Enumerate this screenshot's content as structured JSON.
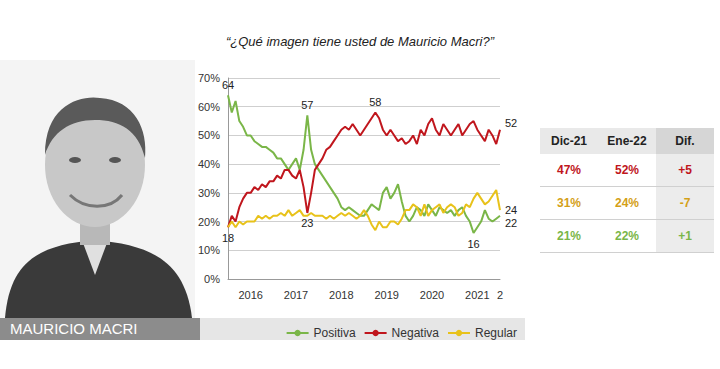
{
  "chart_data": {
    "type": "line",
    "title": "“¿Qué imagen tiene usted de Mauricio Macri?”",
    "categories": [
      null,
      null,
      null,
      null,
      null,
      null,
      "2016",
      null,
      null,
      null,
      null,
      null,
      null,
      null,
      null,
      null,
      null,
      null,
      "2017",
      null,
      null,
      null,
      null,
      null,
      null,
      null,
      null,
      null,
      null,
      null,
      "2018",
      null,
      null,
      null,
      null,
      null,
      null,
      null,
      null,
      null,
      null,
      null,
      "2019",
      null,
      null,
      null,
      null,
      null,
      null,
      null,
      null,
      null,
      null,
      null,
      "2020",
      null,
      null,
      null,
      null,
      null,
      null,
      null,
      null,
      null,
      null,
      null,
      "2021",
      null,
      null,
      null,
      null,
      null,
      "2"
    ],
    "series": [
      {
        "name": "Positiva",
        "color": "#7ab648",
        "values": [
          64,
          58,
          62,
          55,
          53,
          50,
          50,
          48,
          47,
          46,
          46,
          45,
          44,
          42,
          42,
          40,
          38,
          40,
          42,
          38,
          45,
          57,
          45,
          40,
          38,
          36,
          34,
          32,
          30,
          28,
          25,
          24,
          25,
          24,
          23,
          22,
          22,
          24,
          26,
          25,
          24,
          30,
          32,
          28,
          30,
          33,
          27,
          22,
          20,
          22,
          25,
          24,
          22,
          26,
          24,
          22,
          25,
          24,
          23,
          24,
          22,
          24,
          25,
          22,
          20,
          16,
          18,
          20,
          24,
          21,
          20,
          21,
          22
        ]
      },
      {
        "name": "Negativa",
        "color": "#c0161d",
        "values": [
          18,
          22,
          20,
          25,
          28,
          30,
          30,
          32,
          31,
          33,
          32,
          34,
          34,
          36,
          35,
          38,
          38,
          36,
          35,
          38,
          32,
          23,
          30,
          38,
          40,
          42,
          45,
          46,
          48,
          50,
          52,
          53,
          52,
          54,
          52,
          50,
          52,
          54,
          56,
          58,
          56,
          52,
          50,
          52,
          50,
          48,
          49,
          47,
          48,
          50,
          47,
          52,
          50,
          54,
          56,
          52,
          50,
          54,
          52,
          50,
          52,
          54,
          50,
          52,
          54,
          55,
          52,
          50,
          48,
          52,
          50,
          47,
          52
        ]
      },
      {
        "name": "Regular",
        "color": "#e8c21a",
        "values": [
          18,
          20,
          18,
          20,
          19,
          20,
          20,
          20,
          22,
          21,
          22,
          21,
          22,
          22,
          23,
          22,
          24,
          22,
          23,
          24,
          22,
          22,
          23,
          22,
          22,
          22,
          21,
          22,
          21,
          22,
          23,
          22,
          23,
          22,
          21,
          22,
          24,
          22,
          19,
          17,
          20,
          18,
          18,
          20,
          20,
          19,
          21,
          24,
          24,
          26,
          25,
          22,
          26,
          22,
          24,
          25,
          26,
          23,
          25,
          26,
          25,
          22,
          23,
          26,
          25,
          28,
          30,
          28,
          26,
          27,
          29,
          31,
          24
        ]
      }
    ],
    "annotations": [
      {
        "series": "Positiva",
        "point": 0,
        "label": "64"
      },
      {
        "series": "Positiva",
        "point": 21,
        "label": "57"
      },
      {
        "series": "Positiva",
        "point": 65,
        "label": "16"
      },
      {
        "series": "Positiva",
        "point": 72,
        "label": "22"
      },
      {
        "series": "Negativa",
        "point": 0,
        "label": "18"
      },
      {
        "series": "Negativa",
        "point": 21,
        "label": "23"
      },
      {
        "series": "Negativa",
        "point": 39,
        "label": "58"
      },
      {
        "series": "Negativa",
        "point": 72,
        "label": "52"
      },
      {
        "series": "Regular",
        "point": 72,
        "label": "24"
      }
    ],
    "ylim": [
      0,
      70
    ],
    "yticks": [
      {
        "value": 0,
        "label": "0%"
      },
      {
        "value": 10,
        "label": "10%"
      },
      {
        "value": 20,
        "label": "20%"
      },
      {
        "value": 30,
        "label": "30%"
      },
      {
        "value": 40,
        "label": "40%"
      },
      {
        "value": 50,
        "label": "50%"
      },
      {
        "value": 60,
        "label": "60%"
      },
      {
        "value": 70,
        "label": "70%"
      }
    ],
    "grid": true,
    "legend": "bottom"
  },
  "caption": "MAURICIO MACRI",
  "table": {
    "header": [
      "Dic-21",
      "Ene-22",
      "Dif."
    ],
    "rows": [
      {
        "color": "#c0161d",
        "cells": [
          "47%",
          "52%",
          "+5"
        ]
      },
      {
        "color": "#d4a017",
        "cells": [
          "31%",
          "24%",
          "-7"
        ]
      },
      {
        "color": "#7ab648",
        "cells": [
          "21%",
          "22%",
          "+1"
        ]
      }
    ]
  }
}
